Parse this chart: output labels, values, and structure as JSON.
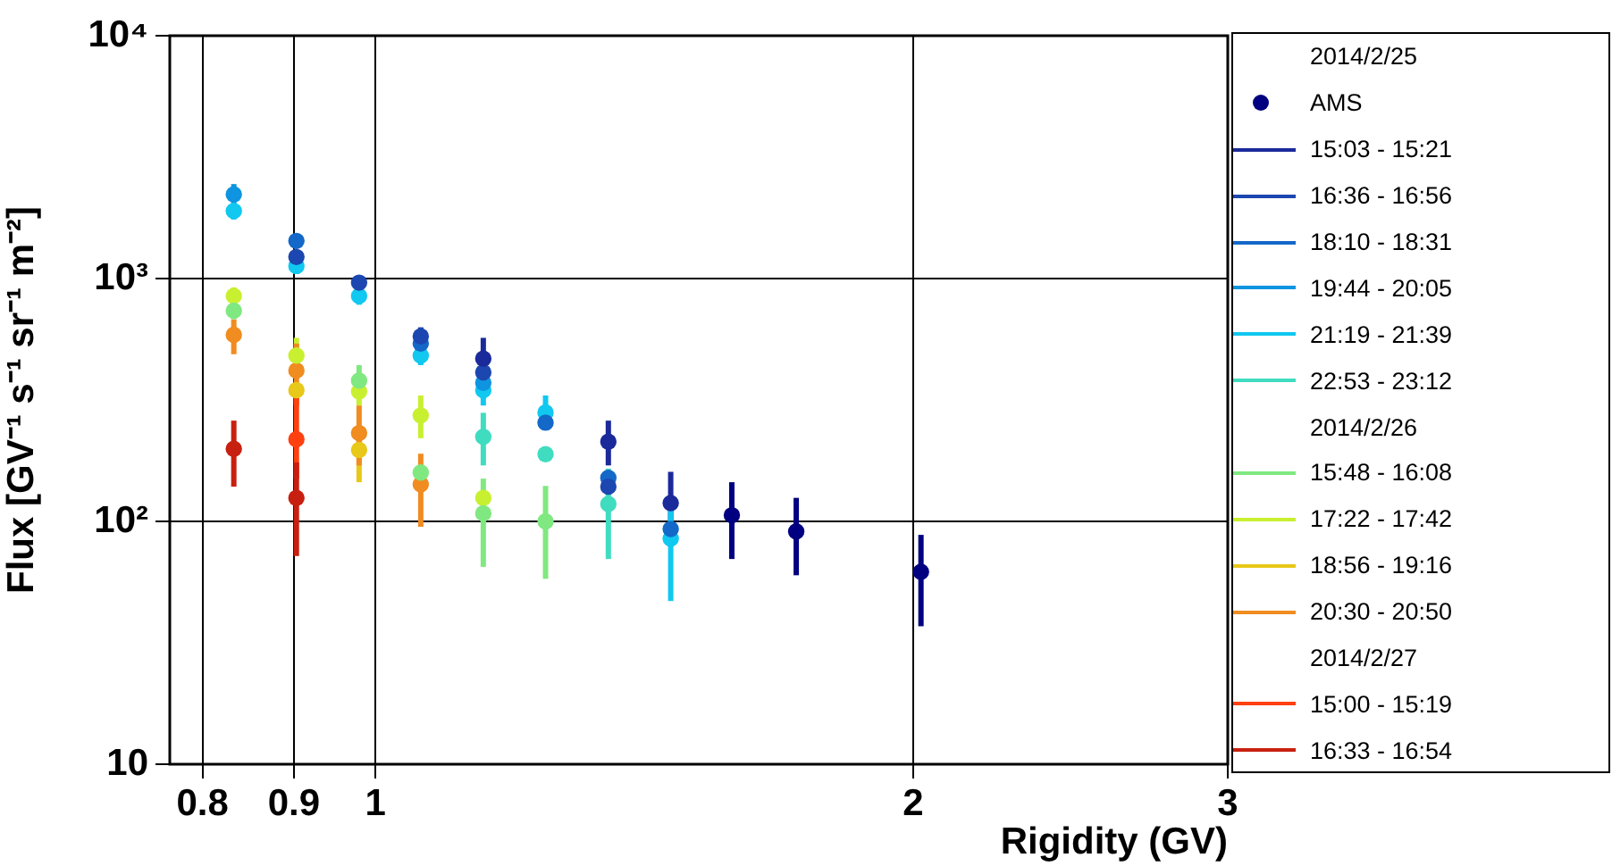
{
  "chart_data": {
    "type": "scatter",
    "xlabel": "Rigidity (GV)",
    "ylabel": "Flux [GV⁻¹ s⁻¹ sr⁻¹ m⁻²]",
    "log": "xy",
    "xlim": [
      0.767,
      3.0
    ],
    "xticks": [
      0.8,
      0.9,
      1,
      2,
      3
    ],
    "ylim": [
      10,
      10000
    ],
    "yticks": [
      10,
      {
        "value": 100,
        "label": "10²"
      },
      {
        "value": 1000,
        "label": "10³"
      },
      {
        "value": 10000,
        "label": "10⁴"
      }
    ],
    "grid": true,
    "legend": "right",
    "marker": "circle",
    "annotations": [
      "2014/2/25",
      "2014/2/26",
      "2014/2/27"
    ],
    "series": [
      {
        "name": "AMS",
        "color": "#000080",
        "marker": "circle",
        "x": [
          1.583,
          1.72,
          2.02
        ],
        "values": [
          106,
          91,
          62
        ],
        "errors": [
          [
            70,
            145
          ],
          [
            60,
            125
          ],
          [
            37,
            88
          ]
        ]
      },
      {
        "name": "15:03 - 15:21",
        "color": "#1a2a9a",
        "x": [
          1.149,
          1.35,
          1.463
        ],
        "values": [
          468,
          213,
          119
        ],
        "errors": [
          [
            380,
            570
          ],
          [
            170,
            260
          ],
          [
            80,
            160
          ]
        ]
      },
      {
        "name": "16:36 - 16:56",
        "color": "#1c46b0",
        "x": [
          0.903,
          0.979,
          1.06,
          1.149,
          1.35
        ],
        "values": [
          1227,
          962,
          578,
          411,
          139
        ],
        "errors": [
          null,
          [
            900,
            1030
          ],
          [
            530,
            630
          ],
          null,
          null
        ]
      },
      {
        "name": "18:10 - 18:31",
        "color": "#1468c8",
        "x": [
          0.903,
          1.06,
          1.245,
          1.35,
          1.463
        ],
        "values": [
          1429,
          540,
          255,
          151,
          93
        ],
        "errors": [
          [
            1330,
            1530
          ],
          null,
          null,
          null,
          null
        ]
      },
      {
        "name": "19:44 - 20:05",
        "color": "#0e94e0",
        "x": [
          0.833,
          1.149
        ],
        "values": [
          2223,
          372
        ],
        "errors": [
          [
            2000,
            2450
          ],
          null
        ]
      },
      {
        "name": "21:19 - 21:39",
        "color": "#10c8f0",
        "x": [
          0.833,
          0.903,
          0.979,
          1.06,
          1.149,
          1.245,
          1.463
        ],
        "values": [
          1897,
          1127,
          848,
          482,
          347,
          281,
          85
        ],
        "errors": [
          [
            1750,
            2050
          ],
          [
            1050,
            1210
          ],
          [
            780,
            920
          ],
          [
            440,
            530
          ],
          [
            300,
            400
          ],
          [
            245,
            330
          ],
          [
            47,
            125
          ]
        ]
      },
      {
        "name": "22:53 - 23:12",
        "color": "#40dcc0",
        "x": [
          1.149,
          1.245,
          1.35
        ],
        "values": [
          223,
          189,
          118
        ],
        "errors": [
          [
            170,
            280
          ],
          null,
          [
            70,
            165
          ]
        ]
      },
      {
        "name": "15:48 - 16:08",
        "color": "#80e880",
        "x": [
          0.833,
          0.979,
          1.06,
          1.149,
          1.245
        ],
        "values": [
          737,
          380,
          159,
          108,
          100
        ],
        "errors": [
          [
            680,
            800
          ],
          [
            330,
            440
          ],
          null,
          [
            65,
            150
          ],
          [
            58,
            140
          ]
        ]
      },
      {
        "name": "17:22 - 17:42",
        "color": "#c8f030",
        "x": [
          0.833,
          0.903,
          0.979,
          1.06,
          1.149
        ],
        "values": [
          848,
          482,
          343,
          273,
          125
        ],
        "errors": [
          [
            780,
            920
          ],
          [
            430,
            570
          ],
          [
            300,
            390
          ],
          [
            220,
            330
          ],
          null
        ]
      },
      {
        "name": "18:56 - 19:16",
        "color": "#e8c818",
        "x": [
          0.903,
          0.979
        ],
        "values": [
          347,
          197
        ],
        "errors": [
          null,
          [
            145,
            240
          ]
        ]
      },
      {
        "name": "20:30 - 20:50",
        "color": "#f08c20",
        "x": [
          0.833,
          0.903,
          0.979,
          1.06
        ],
        "values": [
          587,
          418,
          231,
          142
        ],
        "errors": [
          [
            488,
            678
          ],
          [
            300,
            540
          ],
          [
            170,
            300
          ],
          [
            95,
            190
          ]
        ]
      },
      {
        "name": "15:00 - 15:19",
        "color": "#ff4010",
        "x": [
          0.903
        ],
        "values": [
          218
        ],
        "errors": [
          [
            150,
            330
          ]
        ]
      },
      {
        "name": "16:33 - 16:54",
        "color": "#c82010",
        "x": [
          0.833,
          0.903
        ],
        "values": [
          199,
          125
        ],
        "errors": [
          [
            139,
            260
          ],
          [
            72,
            175
          ]
        ]
      }
    ]
  }
}
